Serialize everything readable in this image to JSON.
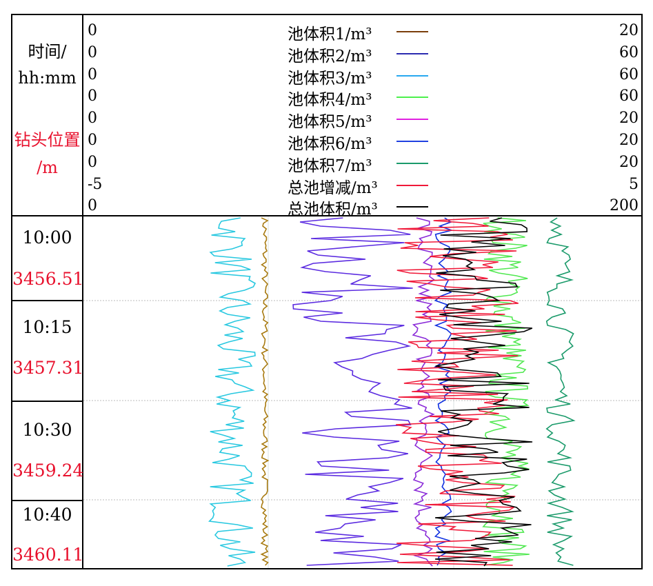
{
  "header": {
    "time_label": "时间/",
    "time_unit": "hh:mm",
    "depth_label": "钻头位置",
    "depth_unit": "/m"
  },
  "legend": [
    {
      "min": "0",
      "name": "池体积1/m³",
      "max": "20",
      "color": "#7a3d0a"
    },
    {
      "min": "0",
      "name": "池体积2/m³",
      "max": "60",
      "color": "#2a2ab0"
    },
    {
      "min": "0",
      "name": "池体积3/m³",
      "max": "60",
      "color": "#28a8f0"
    },
    {
      "min": "0",
      "name": "池体积4/m³",
      "max": "60",
      "color": "#4cf04c"
    },
    {
      "min": "0",
      "name": "池体积5/m³",
      "max": "20",
      "color": "#e020e0"
    },
    {
      "min": "0",
      "name": "池体积6/m³",
      "max": "20",
      "color": "#2040e0"
    },
    {
      "min": "0",
      "name": "池体积7/m³",
      "max": "20",
      "color": "#1a9a6a"
    },
    {
      "min": "-5",
      "name": "总池增减/m³",
      "max": "5",
      "color": "#f01838"
    },
    {
      "min": "0",
      "name": "总池体积/m³",
      "max": "200",
      "color": "#000000"
    }
  ],
  "rows": [
    {
      "time": "10:00",
      "depth": "3456.51"
    },
    {
      "time": "10:15",
      "depth": "3457.31"
    },
    {
      "time": "10:30",
      "depth": "3459.24"
    },
    {
      "time": "10:40",
      "depth": "3460.11"
    }
  ],
  "chart_data": {
    "type": "line",
    "orientation": "vertical-well-log",
    "y_ticks": [
      "10:00",
      "10:15",
      "10:30",
      "10:40"
    ],
    "y_depths": [
      "3456.51",
      "3457.31",
      "3459.24",
      "3460.11"
    ],
    "grid": "dotted-horizontal",
    "series": [
      {
        "name": "池体积1/m³",
        "color": "#a87a10",
        "center": 6.5,
        "amp": 0.12,
        "range": [
          0,
          20
        ]
      },
      {
        "name": "池体积3/m³",
        "color": "#28c8e0",
        "center": 16.0,
        "amp": 2.5,
        "range": [
          0,
          60
        ]
      },
      {
        "name": "池体积2/m³",
        "color": "#5a2ae0",
        "center": 29.0,
        "amp": 6.5,
        "range": [
          0,
          60
        ]
      },
      {
        "name": "池体积4/m³",
        "color": "#50e850",
        "center": 45.5,
        "amp": 2.5,
        "range": [
          0,
          60
        ]
      },
      {
        "name": "池体积5/m³",
        "color": "#8a2ad8",
        "center": 12.2,
        "amp": 0.4,
        "range": [
          0,
          20
        ]
      },
      {
        "name": "池体积6/m³",
        "color": "#1030e0",
        "center": 12.9,
        "amp": 0.3,
        "range": [
          0,
          20
        ]
      },
      {
        "name": "总池增减/m³",
        "color": "#f01838",
        "center": 1.7,
        "amp": 1.1,
        "range": [
          -5,
          5
        ]
      },
      {
        "name": "总池体积/m³",
        "color": "#000000",
        "center": 144,
        "amp": 18,
        "range": [
          0,
          200
        ]
      },
      {
        "name": "池体积7/m³",
        "color": "#1a9a6a",
        "center": 17.1,
        "amp": 0.5,
        "range": [
          0,
          20
        ]
      }
    ]
  }
}
